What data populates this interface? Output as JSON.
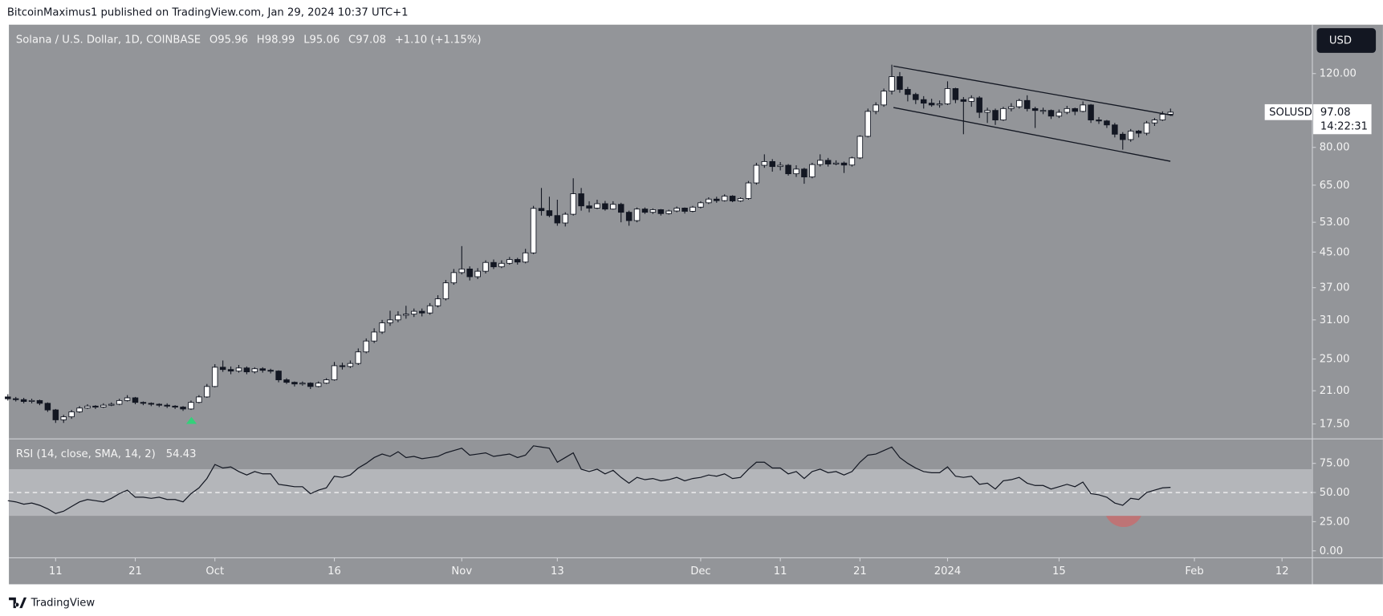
{
  "header": {
    "publisher": "BitcoinMaximus1 published on TradingView.com, Jan 29, 2024 10:37 UTC+1",
    "ohlc_labels": [
      "O",
      "H",
      "L",
      "C"
    ],
    "change": "+1.10 (+1.15%)",
    "currency": "USD",
    "countdown": "14:22:31",
    "footer": "TradingView"
  },
  "chart_data": [
    {
      "type": "candlestick",
      "title": "Solana / U.S. Dollar, 1D, COINBASE",
      "categories": [
        null,
        null,
        null,
        null,
        null,
        null,
        "11",
        null,
        null,
        null,
        null,
        null,
        null,
        null,
        null,
        null,
        "21",
        null,
        null,
        null,
        null,
        null,
        null,
        null,
        null,
        null,
        "Oct",
        null,
        null,
        null,
        null,
        null,
        null,
        null,
        null,
        null,
        null,
        null,
        null,
        null,
        null,
        "16",
        null,
        null,
        null,
        null,
        null,
        null,
        null,
        null,
        null,
        null,
        null,
        null,
        null,
        null,
        null,
        "Nov",
        null,
        null,
        null,
        null,
        null,
        null,
        null,
        null,
        null,
        null,
        null,
        "13",
        null,
        null,
        null,
        null,
        null,
        null,
        null,
        null,
        null,
        null,
        null,
        null,
        null,
        null,
        null,
        null,
        null,
        "Dec",
        null,
        null,
        null,
        null,
        null,
        null,
        null,
        null,
        null,
        "11",
        null,
        null,
        null,
        null,
        null,
        null,
        null,
        null,
        null,
        "21",
        null,
        null,
        null,
        null,
        null,
        null,
        null,
        null,
        null,
        null,
        "2024",
        null,
        null,
        null,
        null,
        null,
        null,
        null,
        null,
        null,
        null,
        null,
        null,
        null,
        "15",
        null,
        null,
        null,
        null,
        null,
        null,
        null,
        null,
        null,
        null,
        null,
        null,
        null,
        null,
        null,
        null,
        "Feb",
        null,
        null,
        null,
        null,
        null,
        null,
        null,
        null,
        null,
        null,
        "12",
        null,
        null,
        null
      ],
      "series": [
        {
          "name": "SOLUSD",
          "up_color": "#ffffff",
          "down_color": "#131722",
          "open": [
            20.3,
            20.1,
            20.0,
            19.8,
            19.9,
            19.6,
            18.9,
            17.9,
            18.2,
            18.7,
            19.1,
            19.3,
            19.2,
            19.4,
            19.5,
            19.9,
            20.2,
            19.7,
            19.6,
            19.5,
            19.4,
            19.3,
            19.2,
            19.0,
            19.7,
            20.3,
            21.5,
            23.9,
            23.6,
            23.4,
            23.8,
            23.3,
            23.7,
            23.5,
            23.4,
            22.3,
            22.0,
            21.8,
            21.9,
            21.5,
            21.9,
            22.3,
            24.1,
            24.0,
            24.4,
            26.0,
            27.6,
            29.0,
            30.5,
            31.0,
            31.8,
            32.0,
            32.5,
            32.2,
            33.5,
            34.8,
            38.0,
            40.2,
            41.0,
            39.3,
            40.5,
            42.5,
            41.5,
            42.3,
            43.2,
            42.6,
            44.8,
            57.2,
            56.5,
            55.0,
            52.8,
            55.4,
            62.0,
            58.0,
            57.3,
            58.7,
            57.0,
            58.5,
            56.0,
            53.5,
            57.0,
            56.0,
            56.8,
            55.6,
            56.4,
            57.3,
            56.3,
            57.6,
            59.0,
            60.2,
            59.7,
            61.2,
            59.6,
            60.4,
            65.8,
            72.5,
            74.0,
            72.0,
            72.5,
            69.2,
            71.0,
            68.0,
            72.8,
            74.5,
            73.0,
            73.4,
            72.6,
            75.5,
            85.0,
            97.5,
            101.0,
            109.0,
            118.0,
            110.0,
            107.0,
            104.0,
            102.0,
            101.0,
            101.6,
            110.5,
            104.0,
            103.0,
            105.0,
            97.0,
            98.0,
            93.0,
            99.0,
            100.0,
            103.5,
            99.0,
            98.0,
            98.0,
            95.0,
            97.0,
            99.0,
            97.5,
            101.0,
            93.0,
            92.5,
            90.5,
            86.0,
            83.5,
            87.5,
            86.5,
            91.5,
            93.0,
            95.96,
            null,
            null,
            null,
            null,
            null,
            null,
            null,
            null,
            null,
            null,
            null,
            null,
            null,
            null,
            null,
            null,
            null
          ],
          "high": [
            20.6,
            20.3,
            20.2,
            20.1,
            20.0,
            19.7,
            19.0,
            18.4,
            18.9,
            19.3,
            19.5,
            19.4,
            19.6,
            19.7,
            20.1,
            20.5,
            20.3,
            19.8,
            19.7,
            19.6,
            19.6,
            19.4,
            19.3,
            19.9,
            20.5,
            21.8,
            24.3,
            24.8,
            24.0,
            24.2,
            24.0,
            23.9,
            23.9,
            23.7,
            23.5,
            22.5,
            22.1,
            22.1,
            22.0,
            22.1,
            22.5,
            24.6,
            24.5,
            24.8,
            26.5,
            28.0,
            29.6,
            31.0,
            32.6,
            32.5,
            33.5,
            33.0,
            33.0,
            34.0,
            35.5,
            38.6,
            41.0,
            46.5,
            41.6,
            41.2,
            43.0,
            43.2,
            43.0,
            43.8,
            43.6,
            45.8,
            58.0,
            64.0,
            61.0,
            60.0,
            56.0,
            67.5,
            64.0,
            59.5,
            60.0,
            59.6,
            59.5,
            59.0,
            56.5,
            57.5,
            57.5,
            57.2,
            57.0,
            56.8,
            57.8,
            57.5,
            58.0,
            59.5,
            60.8,
            61.0,
            61.8,
            61.5,
            60.8,
            66.5,
            73.5,
            77.0,
            75.0,
            73.8,
            73.0,
            72.5,
            71.5,
            73.5,
            77.0,
            75.5,
            74.5,
            74.0,
            76.0,
            85.5,
            99.0,
            102.5,
            110.5,
            126.0,
            121.0,
            111.5,
            108.0,
            106.0,
            104.5,
            103.5,
            115.0,
            111.0,
            105.5,
            106.5,
            106.0,
            99.5,
            99.0,
            100.0,
            102.0,
            104.5,
            106.5,
            100.0,
            99.5,
            98.5,
            98.5,
            100.5,
            99.5,
            103.0,
            101.5,
            94.5,
            93.0,
            91.5,
            87.0,
            88.5,
            88.0,
            92.5,
            94.0,
            97.5,
            98.99,
            null,
            null,
            null,
            null,
            null,
            null,
            null,
            null,
            null,
            null,
            null,
            null,
            null,
            null,
            null,
            null,
            null
          ],
          "low": [
            19.9,
            19.8,
            19.6,
            19.6,
            19.4,
            18.7,
            17.6,
            17.6,
            18.0,
            18.6,
            19.0,
            19.0,
            19.1,
            19.3,
            19.4,
            19.8,
            19.5,
            19.4,
            19.3,
            19.2,
            19.1,
            19.0,
            18.8,
            18.9,
            19.6,
            20.2,
            21.4,
            23.3,
            23.0,
            23.2,
            23.0,
            23.1,
            23.2,
            23.1,
            22.0,
            21.8,
            21.5,
            21.6,
            21.2,
            21.4,
            21.8,
            22.2,
            23.6,
            23.8,
            24.2,
            25.8,
            27.3,
            28.7,
            30.0,
            30.6,
            31.2,
            31.5,
            31.6,
            31.9,
            33.2,
            34.5,
            37.6,
            39.8,
            38.5,
            38.8,
            40.0,
            41.0,
            41.2,
            42.0,
            42.0,
            42.3,
            44.5,
            55.0,
            54.5,
            52.0,
            51.8,
            55.0,
            56.5,
            56.0,
            57.0,
            56.5,
            56.8,
            53.0,
            52.0,
            53.0,
            55.5,
            55.5,
            55.0,
            55.3,
            56.0,
            55.6,
            56.0,
            57.2,
            58.6,
            59.0,
            59.4,
            59.2,
            59.3,
            60.0,
            65.2,
            71.5,
            70.0,
            70.5,
            68.5,
            68.0,
            65.5,
            67.5,
            72.0,
            72.0,
            72.5,
            69.5,
            72.0,
            75.0,
            84.5,
            96.0,
            100.0,
            107.0,
            108.0,
            103.0,
            101.5,
            99.0,
            100.0,
            99.5,
            101.0,
            102.0,
            86.0,
            100.0,
            94.0,
            91.5,
            90.5,
            92.5,
            97.5,
            99.0,
            97.5,
            89.0,
            96.0,
            93.5,
            94.0,
            96.0,
            95.5,
            97.0,
            91.5,
            91.0,
            89.0,
            84.5,
            79.0,
            82.5,
            84.5,
            85.5,
            90.0,
            92.5,
            95.06,
            null,
            null,
            null,
            null,
            null,
            null,
            null,
            null,
            null,
            null,
            null,
            null,
            null,
            null,
            null,
            null,
            null
          ],
          "close": [
            20.1,
            20.0,
            19.8,
            19.9,
            19.6,
            18.9,
            17.9,
            18.2,
            18.7,
            19.1,
            19.3,
            19.2,
            19.4,
            19.5,
            19.9,
            20.2,
            19.7,
            19.6,
            19.5,
            19.4,
            19.3,
            19.2,
            19.0,
            19.7,
            20.3,
            21.5,
            23.9,
            23.6,
            23.4,
            23.8,
            23.3,
            23.7,
            23.5,
            23.4,
            22.3,
            22.0,
            21.8,
            21.9,
            21.5,
            21.9,
            22.3,
            24.1,
            24.0,
            24.4,
            26.0,
            27.6,
            29.0,
            30.5,
            31.0,
            31.8,
            32.0,
            32.5,
            32.2,
            33.5,
            34.8,
            38.0,
            40.2,
            41.0,
            39.3,
            40.5,
            42.5,
            41.5,
            42.3,
            43.2,
            42.6,
            44.8,
            57.2,
            56.5,
            55.0,
            52.8,
            55.4,
            62.0,
            58.0,
            57.3,
            58.7,
            57.0,
            58.5,
            56.0,
            53.5,
            57.0,
            56.0,
            56.8,
            55.6,
            56.4,
            57.3,
            56.3,
            57.6,
            59.0,
            60.2,
            59.7,
            61.2,
            59.6,
            60.4,
            65.8,
            72.5,
            74.0,
            72.0,
            72.5,
            69.2,
            71.0,
            68.0,
            72.8,
            74.5,
            73.0,
            73.4,
            72.6,
            75.5,
            85.0,
            97.5,
            101.0,
            109.0,
            118.0,
            110.0,
            107.0,
            104.0,
            102.0,
            101.0,
            101.6,
            110.5,
            104.0,
            103.0,
            105.0,
            97.0,
            98.0,
            93.0,
            99.0,
            100.0,
            103.5,
            99.0,
            98.0,
            98.0,
            95.0,
            97.0,
            99.0,
            97.5,
            101.0,
            93.0,
            92.5,
            90.5,
            86.0,
            83.5,
            87.5,
            86.5,
            91.5,
            93.0,
            95.96,
            97.08,
            null,
            null,
            null,
            null,
            null,
            null,
            null,
            null,
            null,
            null,
            null,
            null,
            null,
            null,
            null,
            null,
            null
          ]
        }
      ],
      "log_scale": true,
      "grid": false,
      "ylim": [
        16.2,
        157
      ],
      "yticks": [
        {
          "value": 17.5,
          "label": "17.50"
        },
        {
          "value": 21,
          "label": "21.00"
        },
        {
          "value": 25,
          "label": "25.00"
        },
        {
          "value": 31,
          "label": "31.00"
        },
        {
          "value": 37,
          "label": "37.00"
        },
        {
          "value": 45,
          "label": "45.00"
        },
        {
          "value": 53,
          "label": "53.00"
        },
        {
          "value": 65,
          "label": "65.00"
        },
        {
          "value": 80,
          "label": "80.00"
        },
        {
          "value": 120,
          "label": "120.00"
        }
      ]
    },
    {
      "type": "line",
      "title": "RSI (14, close, SMA, 14, 2)",
      "color": "#131722",
      "values": [
        43,
        42,
        40,
        41,
        39,
        36,
        32,
        34,
        38,
        42,
        44,
        43,
        42,
        45,
        49,
        52,
        46,
        46,
        45,
        46,
        44,
        44,
        42,
        49,
        54,
        62,
        74,
        71,
        72,
        68,
        65,
        68,
        66,
        66,
        57,
        56,
        55,
        55,
        49,
        52,
        54,
        64,
        63,
        65,
        71,
        75,
        80,
        83,
        81,
        85,
        80,
        81,
        79,
        80,
        81,
        84,
        86,
        88,
        82,
        83,
        84,
        81,
        82,
        83,
        80,
        82,
        90,
        89,
        88,
        76,
        80,
        84,
        70,
        68,
        70,
        66,
        69,
        63,
        58,
        63,
        61,
        62,
        60,
        61,
        63,
        60,
        62,
        63,
        65,
        64,
        66,
        62,
        63,
        70,
        76,
        76,
        71,
        71,
        66,
        68,
        62,
        68,
        70,
        67,
        68,
        65,
        68,
        76,
        82,
        83,
        86,
        89,
        80,
        75,
        71,
        68,
        67,
        67,
        72,
        64,
        63,
        64,
        57,
        58,
        53,
        60,
        61,
        63,
        58,
        56,
        56,
        53,
        55,
        57,
        55,
        59,
        49,
        48,
        46,
        41,
        39,
        45,
        44,
        50,
        52,
        54,
        54.43
      ],
      "band": [
        30,
        70
      ],
      "band_color": "#b4b6ba",
      "midline": 50,
      "ylim": [
        -6,
        96
      ],
      "yticks": [
        {
          "value": 0,
          "label": "0.00"
        },
        {
          "value": 25,
          "label": "25.00"
        },
        {
          "value": 50,
          "label": "50.00"
        },
        {
          "value": 75,
          "label": "75.00"
        }
      ]
    }
  ]
}
